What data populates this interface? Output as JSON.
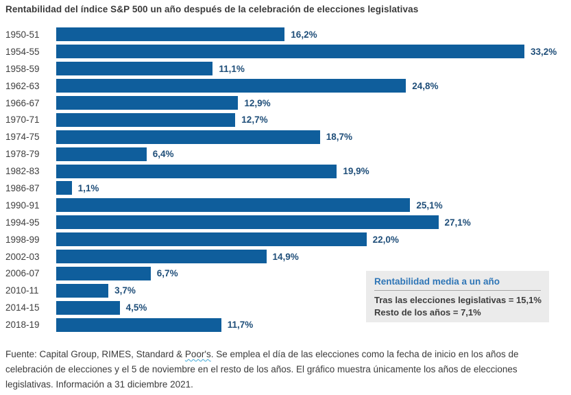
{
  "title": "Rentabilidad del índice S&P 500 un año después de la celebración de elecciones legislativas",
  "chart_data": {
    "type": "bar",
    "orientation": "horizontal",
    "categories": [
      "1950-51",
      "1954-55",
      "1958-59",
      "1962-63",
      "1966-67",
      "1970-71",
      "1974-75",
      "1978-79",
      "1982-83",
      "1986-87",
      "1990-91",
      "1994-95",
      "1998-99",
      "2002-03",
      "2006-07",
      "2010-11",
      "2014-15",
      "2018-19"
    ],
    "values": [
      16.2,
      33.2,
      11.1,
      24.8,
      12.9,
      12.7,
      18.7,
      6.4,
      19.9,
      1.1,
      25.1,
      27.1,
      22.0,
      14.9,
      6.7,
      3.7,
      4.5,
      11.7
    ],
    "value_labels": [
      "16,2%",
      "33,2%",
      "11,1%",
      "24,8%",
      "12,9%",
      "12,7%",
      "18,7%",
      "6,4%",
      "19,9%",
      "1,1%",
      "25,1%",
      "27,1%",
      "22,0%",
      "14,9%",
      "6,7%",
      "3,7%",
      "4,5%",
      "11,7%"
    ],
    "xlabel": "",
    "ylabel": "",
    "xmax": 33.2,
    "grid": false,
    "data_labels": true,
    "bar_color": "#0f5e9c",
    "value_label_color": "#1f4e79"
  },
  "legend_box": {
    "title": "Rentabilidad media a un año",
    "line1": "Tras las elecciones legislativas = 15,1%",
    "line2": "Resto de los años = 7,1%"
  },
  "footer": {
    "line1_prefix": "Fuente: Capital Group, RIMES, Standard & ",
    "line1_spellcheck_word": "Poor's",
    "line1_suffix": ". Se emplea el día de las elecciones como la fecha de inicio en los años de",
    "line2": "celebración de elecciones y el 5 de noviembre en el resto de los años. El gráfico muestra únicamente los años de elecciones",
    "line3": "legislativas. Información a 31 diciembre 2021."
  },
  "colors": {
    "bar": "#0f5e9c",
    "value_label": "#1f4e79",
    "legend_title": "#2e75b6",
    "legend_background": "#ebebeb",
    "title_text": "#3a3a3a"
  }
}
